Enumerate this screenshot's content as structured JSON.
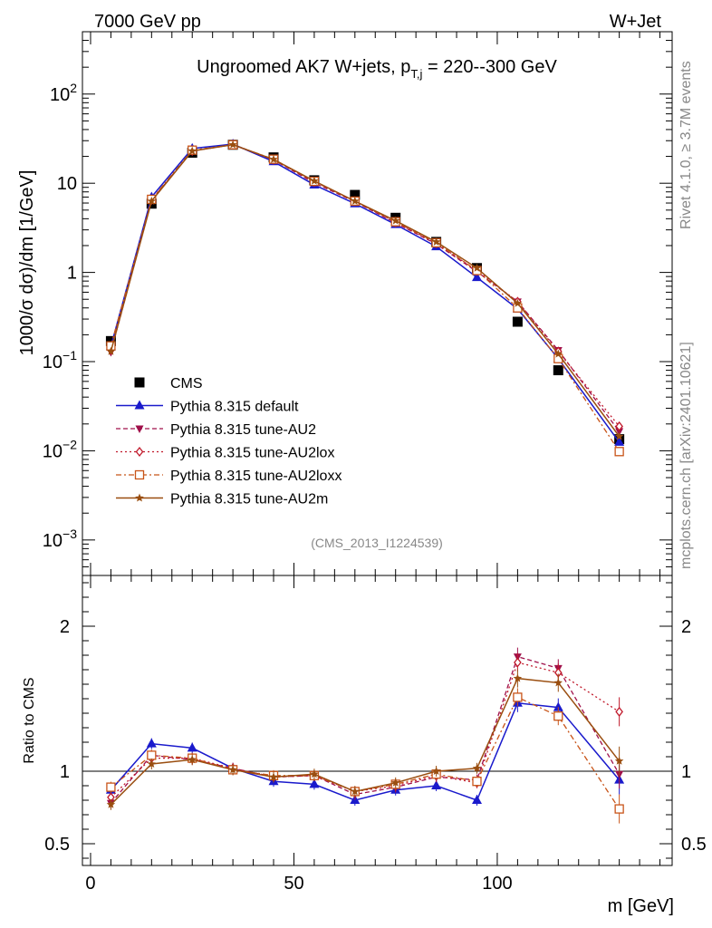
{
  "header": {
    "left": "7000 GeV pp",
    "right": "W+Jet"
  },
  "side": {
    "top": "Rivet 4.1.0, ≥ 3.7M events",
    "bottom": "mcplots.cern.ch [arXiv:2401.10621]"
  },
  "colors": {
    "cms": "#000000",
    "default": "#1a1acc",
    "au2": "#a0104a",
    "au2lox": "#c0182a",
    "au2loxx": "#c85418",
    "au2m": "#9a4e10",
    "refline": "#000000",
    "gray": "#888888"
  },
  "chart_data": [
    {
      "type": "line",
      "title": "Ungroomed AK7 W+jets, p",
      "title_sub": "T,j",
      "title_tail": " = 220--300 GeV",
      "ylabel": "1000/σ  dσ)/dm [1/GeV]",
      "xlabel": "m [GeV]",
      "yscale": "log",
      "ylim": [
        0.0004,
        500
      ],
      "xlim": [
        -2,
        143
      ],
      "yticks": [
        {
          "v": 100,
          "base": "10",
          "exp": "2"
        },
        {
          "v": 10,
          "label": "10"
        },
        {
          "v": 1,
          "label": "1"
        },
        {
          "v": 0.1,
          "base": "10",
          "exp": "−1"
        },
        {
          "v": 0.01,
          "base": "10",
          "exp": "−2"
        },
        {
          "v": 0.001,
          "base": "10",
          "exp": "−3"
        }
      ],
      "watermark": "(CMS_2013_I1224539)",
      "x": [
        5,
        15,
        25,
        35,
        45,
        55,
        65,
        75,
        85,
        95,
        105,
        115,
        130
      ],
      "series": [
        {
          "key": "cms",
          "name": "CMS",
          "values": [
            0.17,
            5.9,
            22,
            27,
            19.5,
            10.8,
            7.4,
            4.1,
            2.2,
            1.12,
            0.28,
            0.08,
            0.0135
          ]
        },
        {
          "key": "default",
          "name": "Pythia 8.315 default",
          "values": [
            0.148,
            7.0,
            24.5,
            27.5,
            17.5,
            9.6,
            5.9,
            3.45,
            1.95,
            0.88,
            0.39,
            0.108,
            0.0125
          ]
        },
        {
          "key": "au2",
          "name": "Pythia 8.315 tune-AU2",
          "values": [
            0.128,
            6.5,
            23.0,
            27.0,
            18.3,
            10.1,
            6.2,
            3.6,
            2.08,
            1.02,
            0.47,
            0.134,
            0.0165
          ]
        },
        {
          "key": "au2lox",
          "name": "Pythia 8.315 tune-AU2lox",
          "values": [
            0.135,
            6.5,
            23.0,
            27.2,
            18.3,
            10.4,
            6.3,
            3.65,
            2.12,
            1.05,
            0.47,
            0.13,
            0.0188
          ]
        },
        {
          "key": "au2loxx",
          "name": "Pythia 8.315 tune-AU2loxx",
          "values": [
            0.15,
            6.6,
            23.5,
            27.0,
            18.6,
            10.5,
            6.3,
            3.7,
            2.15,
            1.05,
            0.4,
            0.108,
            0.0098
          ]
        },
        {
          "key": "au2m",
          "name": "Pythia 8.315 tune-AU2m",
          "values": [
            0.13,
            6.3,
            23.0,
            27.0,
            18.5,
            10.6,
            6.3,
            3.8,
            2.2,
            1.12,
            0.45,
            0.122,
            0.0145
          ]
        }
      ]
    },
    {
      "type": "line",
      "ylabel": "Ratio to CMS",
      "xlabel": "m [GeV]",
      "ylim": [
        0.35,
        2.35
      ],
      "xlim": [
        -2,
        143
      ],
      "yticks": [
        0.5,
        1,
        2
      ],
      "ytick_labels": [
        "0.5",
        "1",
        "2"
      ],
      "xticks": [
        0,
        50,
        100
      ],
      "xtick_labels": [
        "0",
        "50",
        "100"
      ],
      "x": [
        5,
        15,
        25,
        35,
        45,
        55,
        65,
        75,
        85,
        95,
        105,
        115,
        130
      ],
      "series": [
        {
          "key": "default",
          "name": "Pythia 8.315 default",
          "values": [
            0.87,
            1.19,
            1.16,
            1.02,
            0.93,
            0.91,
            0.8,
            0.87,
            0.9,
            0.8,
            1.47,
            1.44,
            0.94
          ]
        },
        {
          "key": "au2",
          "name": "Pythia 8.315 tune-AU2",
          "values": [
            0.78,
            1.11,
            1.08,
            1.02,
            0.96,
            0.97,
            0.84,
            0.89,
            0.96,
            0.94,
            1.79,
            1.71,
            0.98
          ]
        },
        {
          "key": "au2lox",
          "name": "Pythia 8.315 tune-AU2lox",
          "values": [
            0.82,
            1.09,
            1.09,
            1.02,
            0.96,
            0.97,
            0.86,
            0.9,
            0.97,
            0.92,
            1.75,
            1.68,
            1.41
          ]
        },
        {
          "key": "au2loxx",
          "name": "Pythia 8.315 tune-AU2loxx",
          "values": [
            0.89,
            1.11,
            1.09,
            1.01,
            0.97,
            0.97,
            0.86,
            0.91,
            0.98,
            0.93,
            1.51,
            1.38,
            0.74
          ]
        },
        {
          "key": "au2m",
          "name": "Pythia 8.315 tune-AU2m",
          "values": [
            0.77,
            1.05,
            1.08,
            1.01,
            0.96,
            0.98,
            0.86,
            0.92,
            1.0,
            1.02,
            1.64,
            1.61,
            1.07
          ]
        }
      ]
    }
  ]
}
